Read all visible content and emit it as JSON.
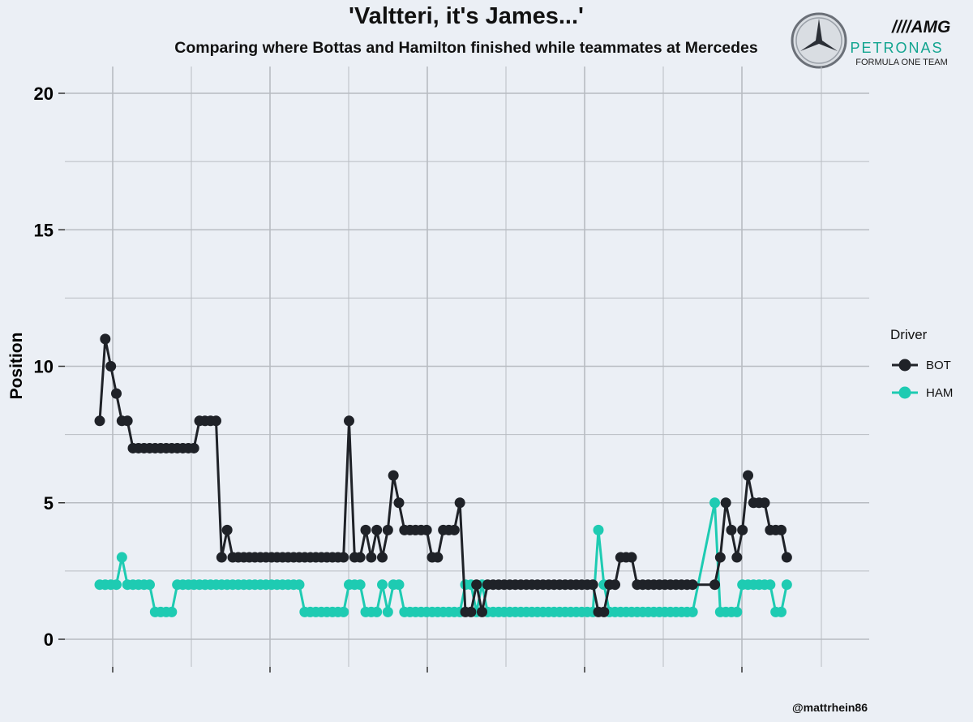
{
  "title": "'Valtteri, it's James...'",
  "subtitle": "Comparing where Bottas and Hamilton finished while teammates at Mercedes",
  "caption": "@mattrhein86",
  "logo": {
    "brand": "AMG",
    "sponsor": "PETRONAS",
    "team": "FORMULA ONE TEAM"
  },
  "colors": {
    "background": "#ebeff5",
    "grid": "#b8bcc2",
    "BOT": "#1f2228",
    "HAM": "#1ecbb2",
    "petronas": "#11a48f"
  },
  "chart_data": {
    "type": "line",
    "ylabel": "Position",
    "ylim": [
      0,
      20
    ],
    "yticks": [
      0,
      5,
      10,
      15,
      20
    ],
    "xlim": [
      -1.5,
      136.5
    ],
    "x_tick_labels": [],
    "grid": true,
    "legend_title": "Driver",
    "legend_position": "right",
    "series": [
      {
        "name": "BOT",
        "values": [
          8,
          11,
          10,
          9,
          8,
          8,
          7,
          7,
          7,
          7,
          7,
          7,
          7,
          7,
          7,
          7,
          7,
          7,
          8,
          8,
          8,
          8,
          3,
          4,
          3,
          3,
          3,
          3,
          3,
          3,
          3,
          3,
          3,
          3,
          3,
          3,
          3,
          3,
          3,
          3,
          3,
          3,
          3,
          3,
          3,
          8,
          3,
          3,
          4,
          3,
          4,
          3,
          4,
          6,
          5,
          4,
          4,
          4,
          4,
          4,
          3,
          3,
          4,
          4,
          4,
          5,
          1,
          1,
          2,
          1,
          2,
          2,
          2,
          2,
          2,
          2,
          2,
          2,
          2,
          2,
          2,
          2,
          2,
          2,
          2,
          2,
          2,
          2,
          2,
          2,
          1,
          1,
          2,
          2,
          3,
          3,
          3,
          2,
          2,
          2,
          2,
          2,
          2,
          2,
          2,
          2,
          2,
          2,
          null,
          null,
          null,
          2,
          3,
          5,
          4,
          3,
          4,
          6,
          5,
          5,
          5,
          4,
          4,
          4,
          3
        ]
      },
      {
        "name": "HAM",
        "values": [
          2,
          2,
          2,
          2,
          3,
          2,
          2,
          2,
          2,
          2,
          1,
          1,
          1,
          1,
          2,
          2,
          2,
          2,
          2,
          2,
          2,
          2,
          2,
          2,
          2,
          2,
          2,
          2,
          2,
          2,
          2,
          2,
          2,
          2,
          2,
          2,
          2,
          1,
          1,
          1,
          1,
          1,
          1,
          1,
          1,
          2,
          2,
          2,
          1,
          1,
          1,
          2,
          1,
          2,
          2,
          1,
          1,
          1,
          1,
          1,
          1,
          1,
          1,
          1,
          1,
          1,
          2,
          2,
          1,
          2,
          1,
          1,
          1,
          1,
          1,
          1,
          1,
          1,
          1,
          1,
          1,
          1,
          1,
          1,
          1,
          1,
          1,
          1,
          1,
          1,
          4,
          2,
          1,
          1,
          1,
          1,
          1,
          1,
          1,
          1,
          1,
          1,
          1,
          1,
          1,
          1,
          1,
          1,
          null,
          null,
          null,
          5,
          1,
          1,
          1,
          1,
          2,
          2,
          2,
          2,
          2,
          2,
          1,
          1,
          2
        ]
      }
    ]
  }
}
